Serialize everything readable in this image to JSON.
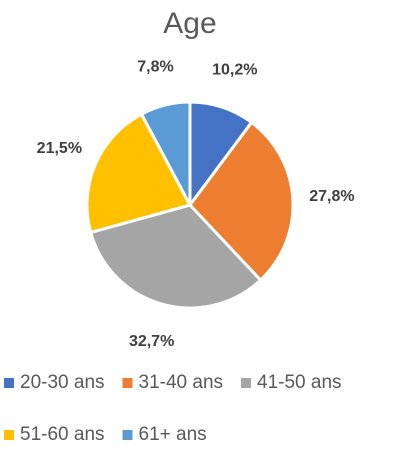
{
  "chart_data": {
    "type": "pie",
    "title": "Age",
    "categories": [
      "20-30 ans",
      "31-40 ans",
      "41-50 ans",
      "51-60 ans",
      "61+ ans"
    ],
    "values": [
      10.2,
      27.8,
      32.7,
      21.5,
      7.8
    ],
    "value_labels": [
      "10,2%",
      "27,8%",
      "32,7%",
      "21,5%",
      "7,8%"
    ],
    "colors": [
      "#4472c4",
      "#ed7d31",
      "#a5a5a5",
      "#ffc000",
      "#5b9bd5"
    ],
    "legend": "bottom"
  }
}
